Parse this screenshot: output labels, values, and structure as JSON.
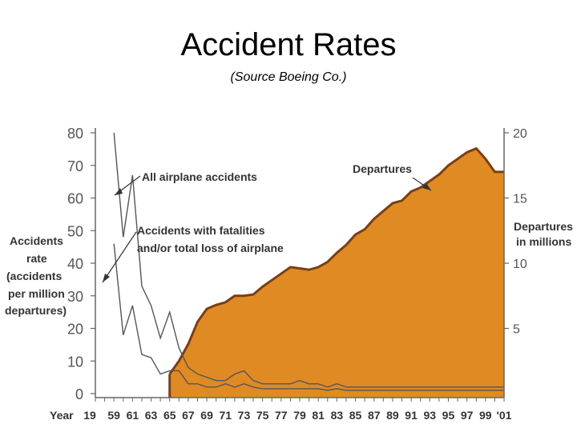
{
  "title": "Accident Rates",
  "subtitle": "(Source Boeing Co.)",
  "chart_data": {
    "type": "line",
    "xlabel_prefix": "Year",
    "x_tick_labels": [
      "19",
      "59",
      "61",
      "63",
      "65",
      "67",
      "69",
      "71",
      "73",
      "75",
      "77",
      "79",
      "81",
      "83",
      "85",
      "87",
      "89",
      "91",
      "93",
      "95",
      "97",
      "99",
      "'01"
    ],
    "y_left_label_lines": [
      "Accidents",
      "rate",
      "(accidents",
      "per million",
      "departures)"
    ],
    "y_left_ticks": [
      "80",
      "70",
      "60",
      "50",
      "40",
      "30",
      "20",
      "10",
      "0"
    ],
    "y_left_range": [
      0,
      80
    ],
    "y_right_label_lines": [
      "Departures",
      "in millions"
    ],
    "y_right_ticks": [
      "20",
      "15",
      "10",
      "5"
    ],
    "y_right_range": [
      0,
      20
    ],
    "series": [
      {
        "name": "All airplane accidents",
        "axis": "left",
        "color": "#555555",
        "x": [
          1959,
          1960,
          1961,
          1962,
          1963,
          1964,
          1965,
          1966,
          1967,
          1968,
          1969,
          1970,
          1971,
          1972,
          1973,
          1974,
          1975,
          1976,
          1977,
          1978,
          1979,
          1980,
          1981,
          1982,
          1983,
          1984,
          1985,
          1986,
          1987,
          1988,
          1989,
          1990,
          1991,
          1992,
          1993,
          1994,
          1995,
          1996,
          1997,
          1998,
          1999,
          2000,
          2001
        ],
        "values": [
          80,
          48,
          67,
          33,
          27,
          17,
          25,
          14,
          8,
          6,
          5,
          4,
          4,
          6,
          7,
          4,
          3,
          3,
          3,
          3,
          4,
          3,
          3,
          2,
          3,
          2,
          2,
          2,
          2,
          2,
          2,
          2,
          2,
          2,
          2,
          2,
          2,
          2,
          2,
          2,
          2,
          2,
          2
        ]
      },
      {
        "name": "Accidents with fatalities and/or total loss of airplane",
        "axis": "left",
        "color": "#555555",
        "x": [
          1959,
          1960,
          1961,
          1962,
          1963,
          1964,
          1965,
          1966,
          1967,
          1968,
          1969,
          1970,
          1971,
          1972,
          1973,
          1974,
          1975,
          1976,
          1977,
          1978,
          1979,
          1980,
          1981,
          1982,
          1983,
          1984,
          1985,
          1986,
          1987,
          1988,
          1989,
          1990,
          1991,
          1992,
          1993,
          1994,
          1995,
          1996,
          1997,
          1998,
          1999,
          2000,
          2001
        ],
        "values": [
          46,
          18,
          27,
          12,
          11,
          6,
          7,
          7,
          3,
          3,
          2,
          2,
          3,
          2,
          3,
          2,
          1.5,
          1.5,
          1.5,
          1.5,
          1.5,
          1.5,
          1.5,
          1,
          1.5,
          1,
          1,
          1,
          1,
          1,
          1,
          1,
          1,
          1,
          1,
          1,
          1,
          1,
          1,
          1,
          1,
          1,
          1
        ]
      },
      {
        "name": "Departures",
        "axis": "right",
        "type": "area",
        "color": "#e08a24",
        "x": [
          1965,
          1966,
          1967,
          1968,
          1969,
          1970,
          1971,
          1972,
          1973,
          1974,
          1975,
          1976,
          1977,
          1978,
          1979,
          1980,
          1981,
          1982,
          1983,
          1984,
          1985,
          1986,
          1987,
          1988,
          1989,
          1990,
          1991,
          1992,
          1993,
          1994,
          1995,
          1996,
          1997,
          1998,
          1999,
          2000,
          2001
        ],
        "values": [
          1.5,
          2.5,
          3.8,
          5.5,
          6.5,
          6.8,
          7.0,
          7.5,
          7.5,
          7.6,
          8.2,
          8.7,
          9.2,
          9.7,
          9.6,
          9.5,
          9.7,
          10.1,
          10.8,
          11.4,
          12.2,
          12.6,
          13.4,
          14.0,
          14.6,
          14.8,
          15.5,
          15.8,
          16.3,
          16.8,
          17.5,
          18.0,
          18.5,
          18.8,
          18.0,
          17.0,
          17.0
        ]
      }
    ],
    "annotations": [
      "All airplane accidents",
      "Accidents with fatalities",
      "and/or total loss of airplane",
      "Departures"
    ]
  }
}
